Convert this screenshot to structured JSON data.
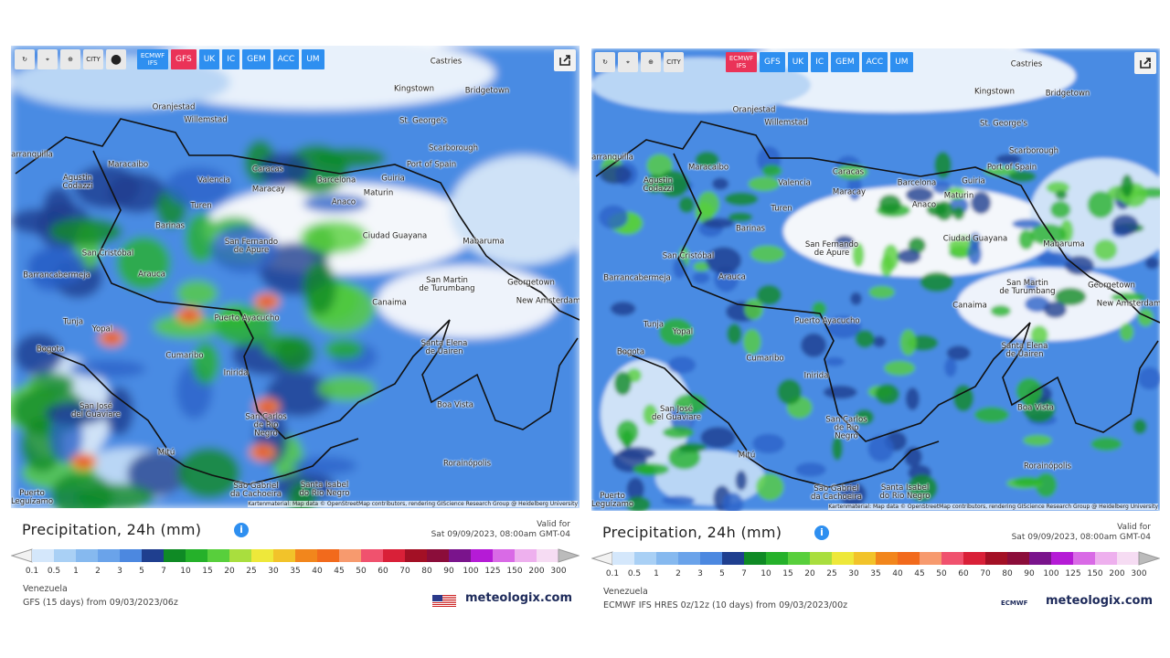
{
  "panels": [
    {
      "toolbar": {
        "city_icon": "CITY",
        "models": [
          "ECMWF IFS",
          "GFS",
          "UK",
          "IC",
          "GEM",
          "ACC",
          "UM"
        ],
        "active": 1
      },
      "cities": [
        "Castries",
        "Kingstown",
        "Bridgetown",
        "Oranjestad",
        "Willemstad",
        "St. George's",
        "Scarborough",
        "arranquilla",
        "Maracaibo",
        "Port of Spain",
        "Caracas",
        "Agustin\nCodazzi",
        "Valencia",
        "Barcelona",
        "Guiria",
        "Maracay",
        "Maturin",
        "Anaco",
        "Turen",
        "Barinas",
        "Ciudad Guayana",
        "Mabaruma",
        "San Fernando\nde Apure",
        "San Cristóbal",
        "Arauca",
        "Barrancabermeja",
        "Georgetown",
        "San Martin\nde Turumbang",
        "New Amsterdam",
        "Canaima",
        "Tunja",
        "Puerto Ayacucho",
        "Yopal",
        "Bogota",
        "Santa Elena\nde Uairen",
        "Cumaribo",
        "Inirida",
        "San José\ndel Guaviare",
        "Boa Vista",
        "San Carlos\nde Rio\nNegro",
        "Mitú",
        "Rorainópolis",
        "Puerto\nLeguízamo",
        "São Gabriel\nda Cachoeira",
        "Santa Isabel\ndo Rio Negro"
      ],
      "attribution": "Kartenmaterial: Map data © OpenStreetMap contributors, rendering GIScience Research Group @ Heidelberg University",
      "title": "Precipitation, 24h (mm)",
      "valid_label": "Valid for",
      "valid_time": "Sat 09/09/2023, 08:00am GMT-04",
      "scale": [
        "0.1",
        "0.5",
        "1",
        "2",
        "3",
        "5",
        "7",
        "10",
        "15",
        "20",
        "25",
        "30",
        "35",
        "40",
        "45",
        "50",
        "60",
        "70",
        "80",
        "90",
        "100",
        "125",
        "150",
        "200",
        "300"
      ],
      "region": "Venezuela",
      "model_run": "GFS (15 days) from 09/03/2023/06z",
      "brand": "meteologix.com"
    },
    {
      "toolbar": {
        "city_icon": "CITY",
        "models": [
          "ECMWF IFS",
          "GFS",
          "UK",
          "IC",
          "GEM",
          "ACC",
          "UM"
        ],
        "active": 0
      },
      "cities": [
        "Castries",
        "Kingstown",
        "Bridgetown",
        "Oranjestad",
        "Willemstad",
        "St. George's",
        "Scarborough",
        "arranquilla",
        "Maracaibo",
        "Port of Spain",
        "Caracas",
        "Agustin\nCodazzi",
        "Valencia",
        "Barcelona",
        "Guiria",
        "Maracay",
        "Maturin",
        "Anaco",
        "Turen",
        "Barinas",
        "Ciudad Guayana",
        "Mabaruma",
        "San Fernando\nde Apure",
        "San Cristóbal",
        "Arauca",
        "Barrancabermeja",
        "Georgetown",
        "San Martin\nde Turumbang",
        "New Amsterdam",
        "Canaima",
        "Tunja",
        "Puerto Ayacucho",
        "Yopal",
        "Bogota",
        "Santa Elena\nde Uairen",
        "Cumaribo",
        "Inirida",
        "San José\ndel Guaviare",
        "Boa Vista",
        "San Carlos\nde Rio\nNegro",
        "Mitú",
        "Rorainópolis",
        "Puerto\nLeguízamo",
        "São Gabriel\nda Cachoeira",
        "Santa Isabel\ndo Rio Negro"
      ],
      "attribution": "Kartenmaterial: Map data © OpenStreetMap contributors, rendering GIScience Research Group @ Heidelberg University",
      "title": "Precipitation, 24h (mm)",
      "valid_label": "Valid for",
      "valid_time": "Sat 09/09/2023, 08:00am GMT-04",
      "scale": [
        "0.1",
        "0.5",
        "1",
        "2",
        "3",
        "5",
        "7",
        "10",
        "15",
        "20",
        "25",
        "30",
        "35",
        "40",
        "45",
        "50",
        "60",
        "70",
        "80",
        "90",
        "100",
        "125",
        "150",
        "200",
        "300"
      ],
      "region": "Venezuela",
      "model_run": "ECMWF IFS HRES 0z/12z (10 days) from 09/03/2023/00z",
      "brand": "meteologix.com",
      "logo_text": "ECMWF"
    }
  ]
}
